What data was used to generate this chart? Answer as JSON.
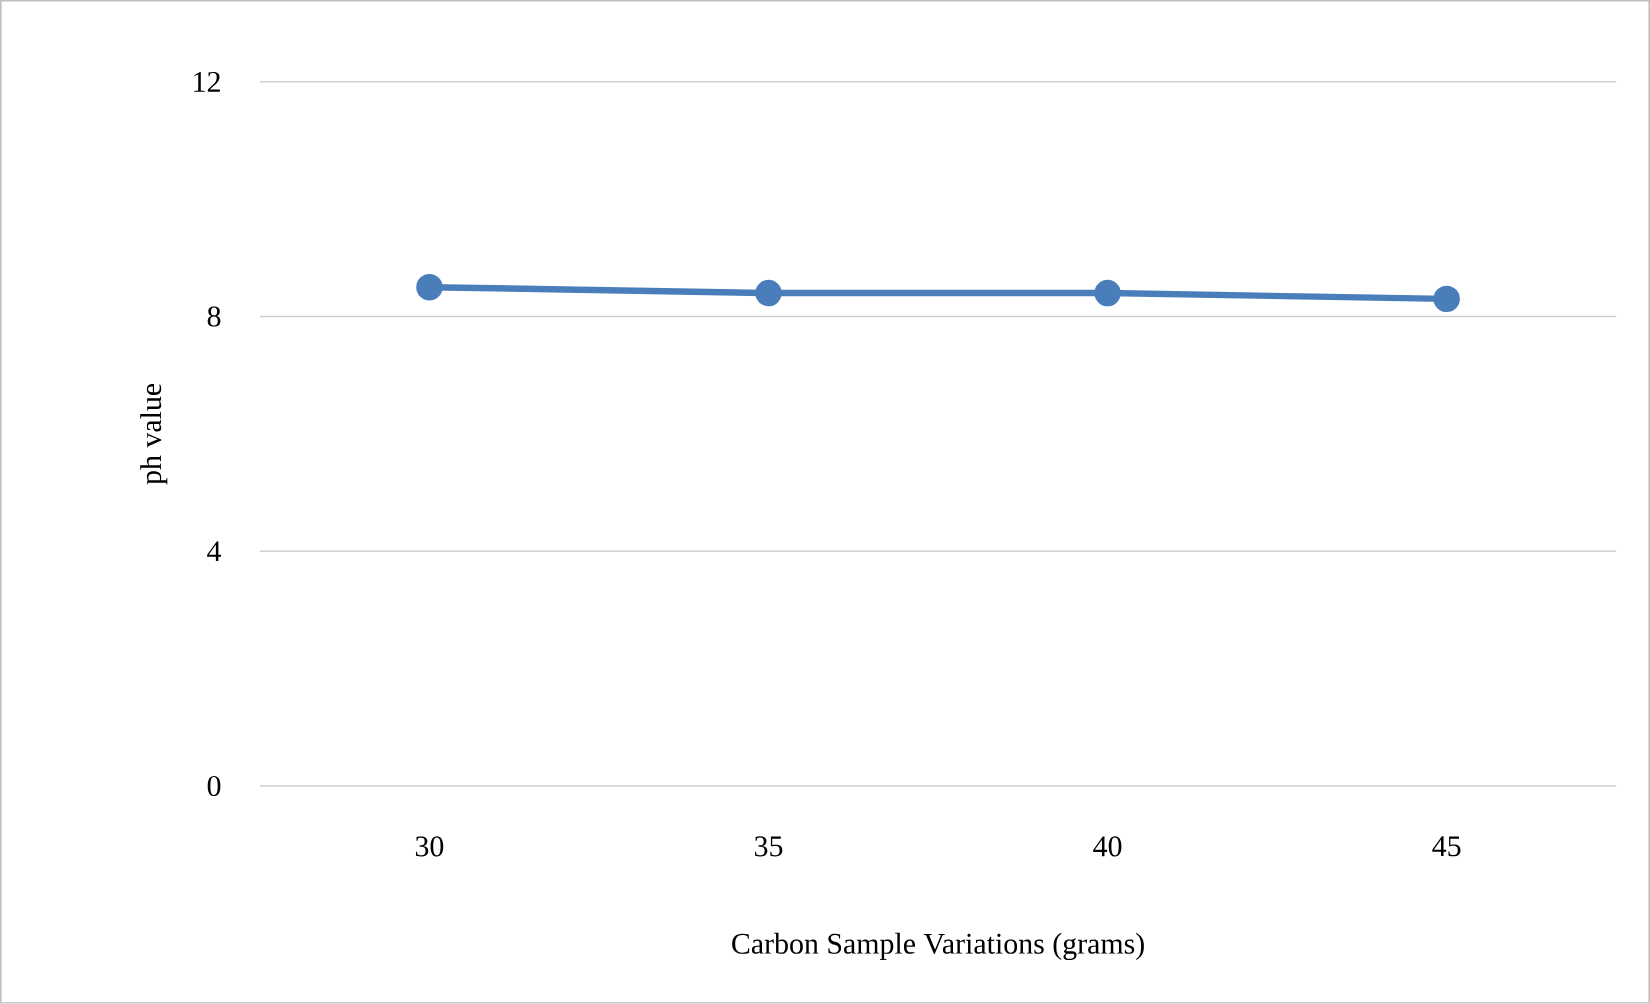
{
  "chart_data": {
    "type": "line",
    "xlabel": "Carbon Sample Variations (grams)",
    "ylabel": "ph value",
    "categories": [
      "30",
      "35",
      "40",
      "45"
    ],
    "series": [
      {
        "color": "#4a7ebb",
        "values": [
          8.5,
          8.4,
          8.4,
          8.3
        ]
      }
    ],
    "ylim": [
      0,
      12
    ],
    "yticks": [
      0,
      4,
      8,
      12
    ],
    "grid": "y",
    "marker": "circle",
    "line_style": "solid"
  }
}
